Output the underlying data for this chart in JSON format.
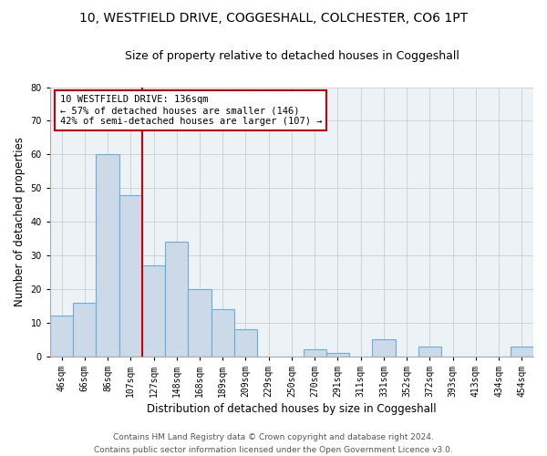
{
  "title": "10, WESTFIELD DRIVE, COGGESHALL, COLCHESTER, CO6 1PT",
  "subtitle": "Size of property relative to detached houses in Coggeshall",
  "xlabel": "Distribution of detached houses by size in Coggeshall",
  "ylabel": "Number of detached properties",
  "categories": [
    "46sqm",
    "66sqm",
    "86sqm",
    "107sqm",
    "127sqm",
    "148sqm",
    "168sqm",
    "189sqm",
    "209sqm",
    "229sqm",
    "250sqm",
    "270sqm",
    "291sqm",
    "311sqm",
    "331sqm",
    "352sqm",
    "372sqm",
    "393sqm",
    "413sqm",
    "434sqm",
    "454sqm"
  ],
  "values": [
    12,
    16,
    60,
    48,
    27,
    34,
    20,
    14,
    8,
    0,
    0,
    2,
    1,
    0,
    5,
    0,
    3,
    0,
    0,
    0,
    3
  ],
  "bar_color": "#ccd9e8",
  "bar_edge_color": "#6aaed6",
  "bar_linewidth": 0.8,
  "vline_x": 3.5,
  "vline_color": "#cc0000",
  "annotation_text": "10 WESTFIELD DRIVE: 136sqm\n← 57% of detached houses are smaller (146)\n42% of semi-detached houses are larger (107) →",
  "annotation_box_color": "#ffffff",
  "annotation_box_edge_color": "#cc0000",
  "ylim": [
    0,
    80
  ],
  "yticks": [
    0,
    10,
    20,
    30,
    40,
    50,
    60,
    70,
    80
  ],
  "grid_color": "#cccccc",
  "bg_color": "#edf2f7",
  "footer1": "Contains HM Land Registry data © Crown copyright and database right 2024.",
  "footer2": "Contains public sector information licensed under the Open Government Licence v3.0.",
  "title_fontsize": 10,
  "subtitle_fontsize": 9,
  "axis_label_fontsize": 8.5,
  "tick_fontsize": 7,
  "annotation_fontsize": 7.5,
  "footer_fontsize": 6.5
}
